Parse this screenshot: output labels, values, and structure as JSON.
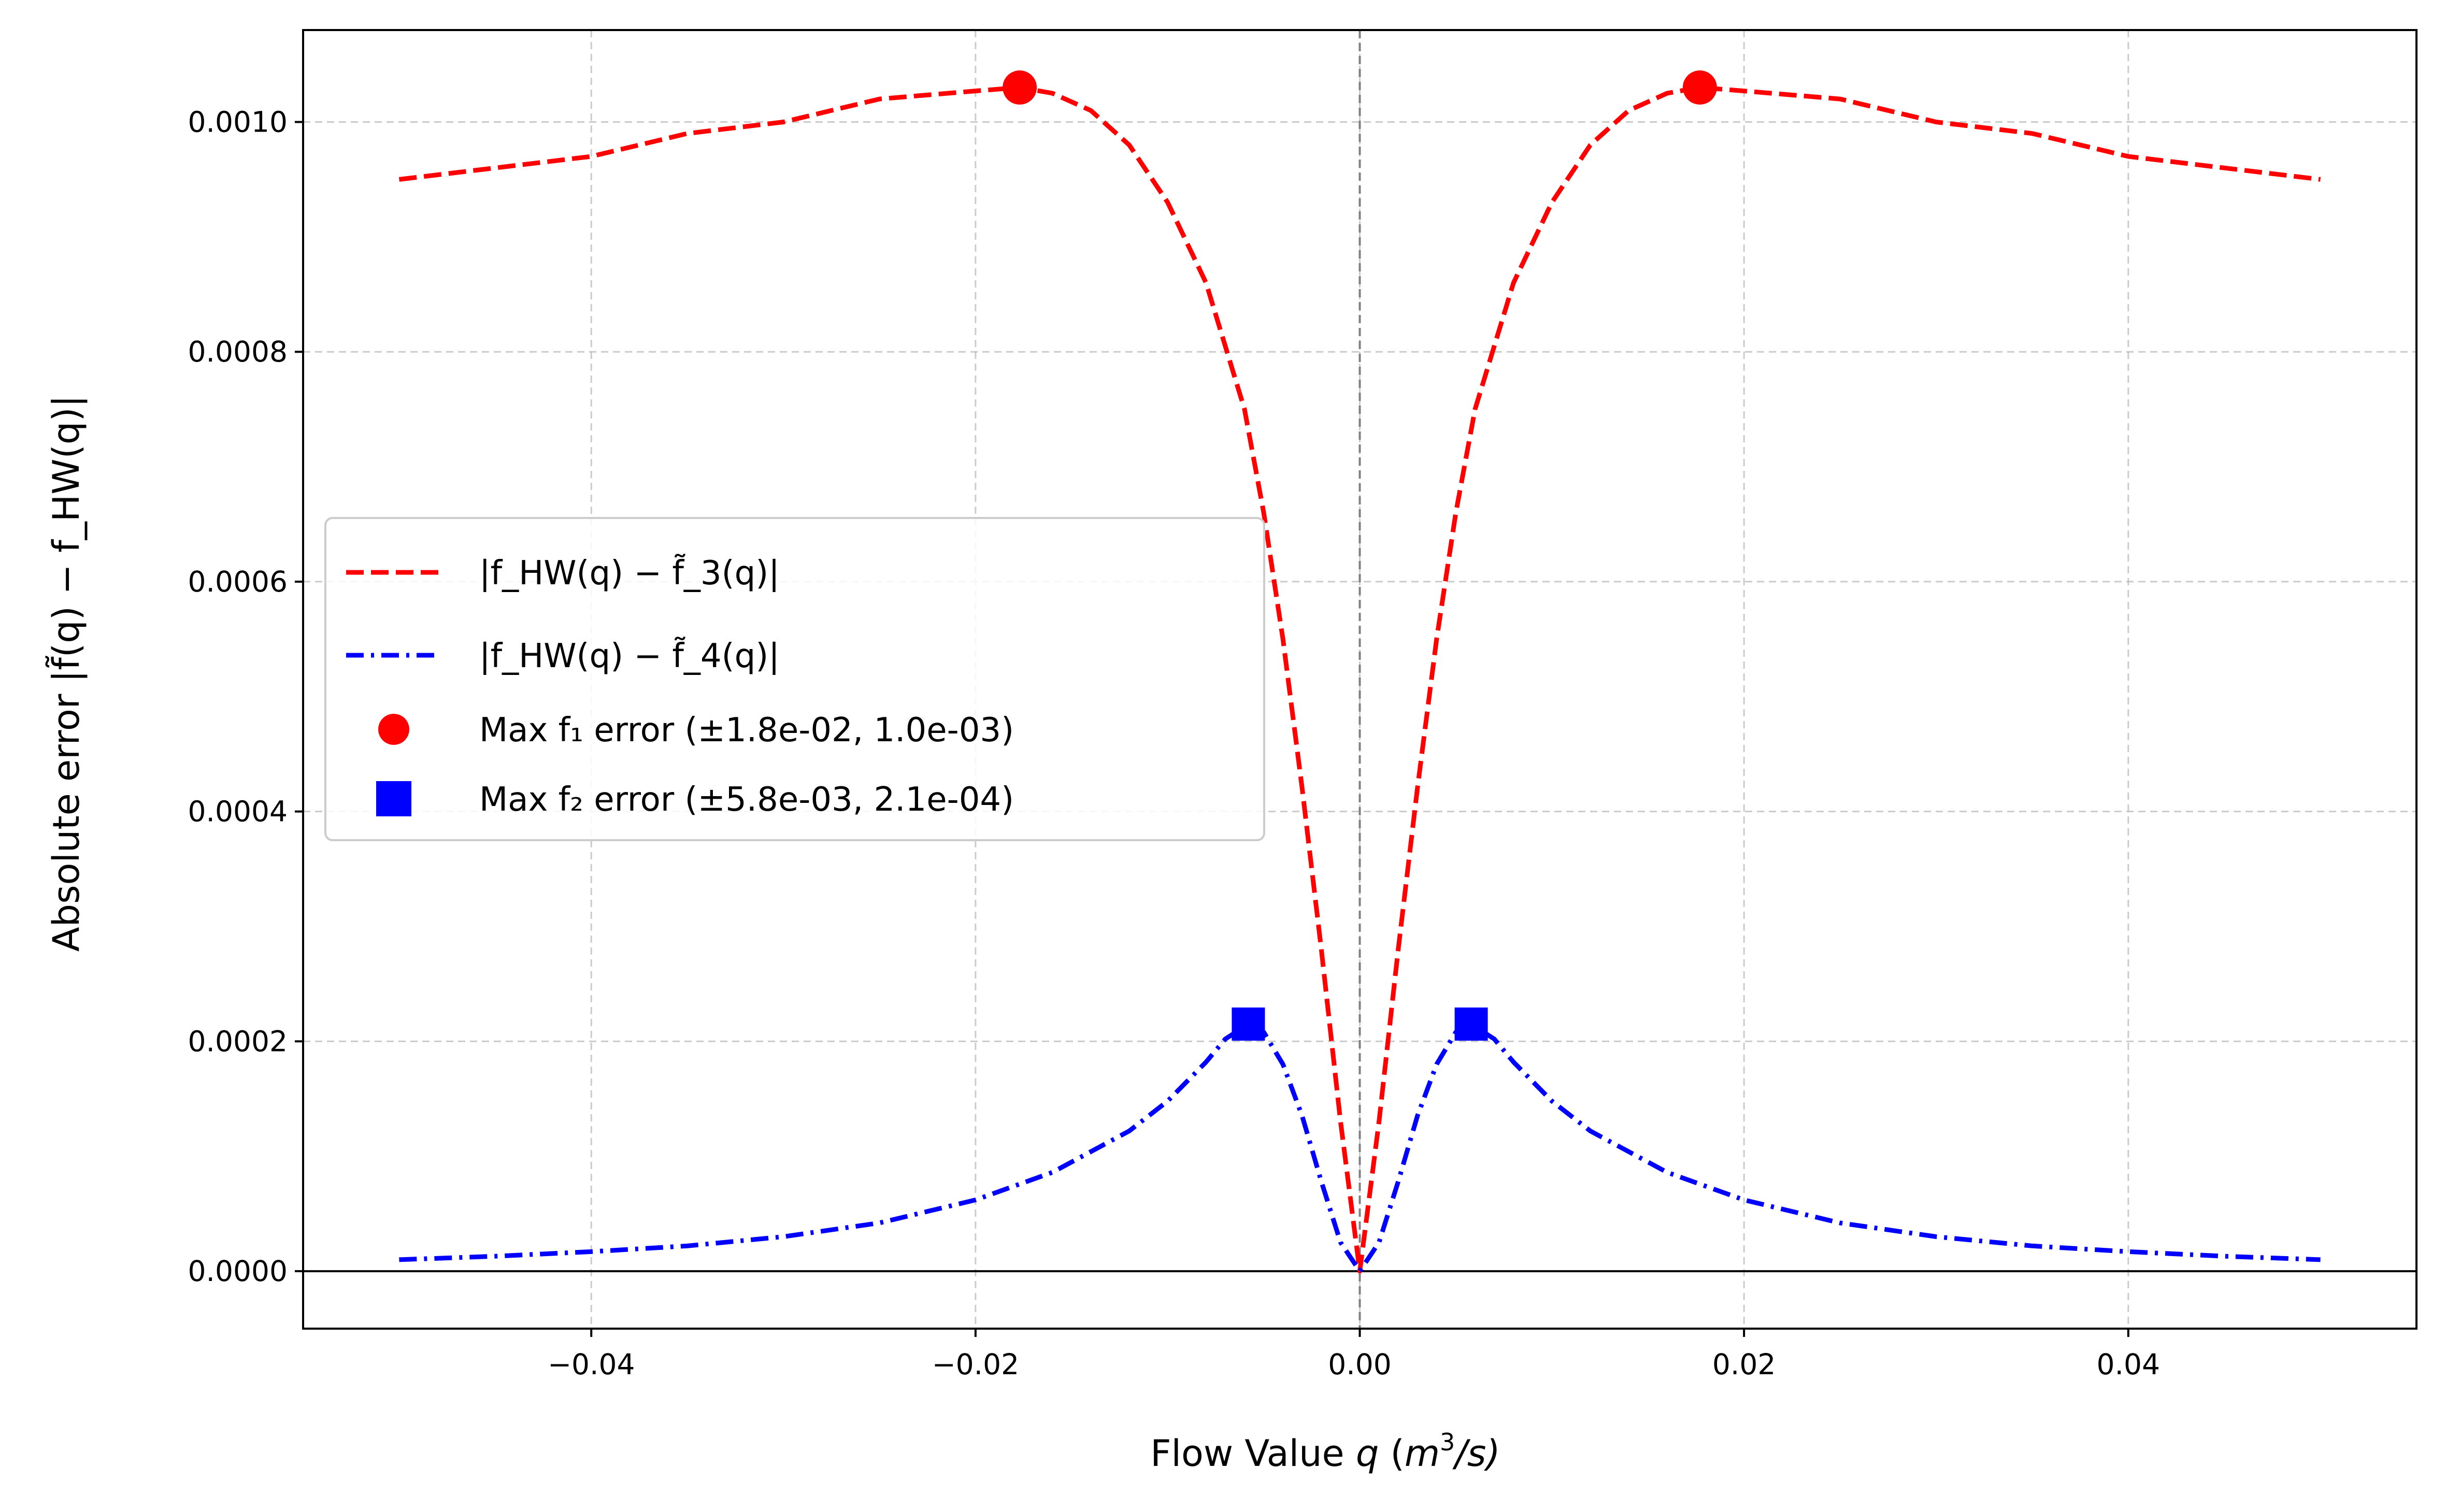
{
  "chart_data": {
    "type": "line",
    "xlabel": {
      "prefix": "Flow Value ",
      "var": "q",
      "unit_open": " (",
      "unit_m": "m",
      "unit_exp": "3",
      "unit_rest": "/s)"
    },
    "ylabel": "Absolute error |f̃(q) − f_HW(q)|",
    "xlim": [
      -0.055,
      0.055
    ],
    "ylim": [
      -5e-05,
      0.00108
    ],
    "xticks": [
      -0.04,
      -0.02,
      0.0,
      0.02,
      0.04
    ],
    "xtick_labels": [
      "−0.04",
      "−0.02",
      "0.00",
      "0.02",
      "0.04"
    ],
    "yticks": [
      0.0,
      0.0002,
      0.0004,
      0.0006,
      0.0008,
      0.001
    ],
    "ytick_labels": [
      "0.0000",
      "0.0002",
      "0.0004",
      "0.0006",
      "0.0008",
      "0.0010"
    ],
    "grid": true,
    "legend_position": "center-left",
    "reference_lines": {
      "horizontal_y": 0,
      "vertical_x": 0
    },
    "series": [
      {
        "name": "|f_HW(q) − f̃_3(q)|",
        "color": "#ff0000",
        "style": "dashed",
        "x": [
          -0.05,
          -0.045,
          -0.04,
          -0.035,
          -0.03,
          -0.025,
          -0.02,
          -0.0177,
          -0.016,
          -0.014,
          -0.012,
          -0.01,
          -0.008,
          -0.006,
          -0.005,
          -0.004,
          -0.003,
          -0.002,
          -0.001,
          0.0,
          0.001,
          0.002,
          0.003,
          0.004,
          0.005,
          0.006,
          0.008,
          0.01,
          0.012,
          0.014,
          0.016,
          0.0177,
          0.02,
          0.025,
          0.03,
          0.035,
          0.04,
          0.045,
          0.05
        ],
        "y": [
          0.00095,
          0.00096,
          0.00097,
          0.00099,
          0.001,
          0.00102,
          0.001027,
          0.00103,
          0.001025,
          0.00101,
          0.00098,
          0.00093,
          0.00086,
          0.00075,
          0.00066,
          0.00055,
          0.00042,
          0.00028,
          0.00013,
          0.0,
          0.00013,
          0.00028,
          0.00042,
          0.00055,
          0.00066,
          0.00075,
          0.00086,
          0.00093,
          0.00098,
          0.00101,
          0.001025,
          0.00103,
          0.001027,
          0.00102,
          0.001,
          0.00099,
          0.00097,
          0.00096,
          0.00095
        ]
      },
      {
        "name": "|f_HW(q) − f̃_4(q)|",
        "color": "#0000ff",
        "style": "dashdot",
        "x": [
          -0.05,
          -0.045,
          -0.04,
          -0.035,
          -0.03,
          -0.025,
          -0.02,
          -0.016,
          -0.012,
          -0.01,
          -0.008,
          -0.007,
          -0.0058,
          -0.005,
          -0.004,
          -0.003,
          -0.002,
          -0.001,
          0.0,
          0.001,
          0.002,
          0.003,
          0.004,
          0.005,
          0.0058,
          0.007,
          0.008,
          0.01,
          0.012,
          0.016,
          0.02,
          0.025,
          0.03,
          0.035,
          0.04,
          0.045,
          0.05
        ],
        "y": [
          1e-05,
          1.3e-05,
          1.7e-05,
          2.2e-05,
          3e-05,
          4.2e-05,
          6.2e-05,
          8.6e-05,
          0.000122,
          0.000148,
          0.000182,
          0.000202,
          0.000215,
          0.000208,
          0.00018,
          0.000135,
          7.8e-05,
          2.5e-05,
          0.0,
          2.5e-05,
          7.8e-05,
          0.000135,
          0.00018,
          0.000208,
          0.000215,
          0.000202,
          0.000182,
          0.000148,
          0.000122,
          8.6e-05,
          6.2e-05,
          4.2e-05,
          3e-05,
          2.2e-05,
          1.7e-05,
          1.3e-05,
          1e-05
        ]
      }
    ],
    "markers": [
      {
        "name": "Max f₁ error (±1.8e-02, 1.0e-03)",
        "shape": "circle",
        "color": "#ff0000",
        "points": [
          [
            -0.0177,
            0.00103
          ],
          [
            0.0177,
            0.00103
          ]
        ]
      },
      {
        "name": "Max f₂ error (±5.8e-03, 2.1e-04)",
        "shape": "square",
        "color": "#0000ff",
        "points": [
          [
            -0.0058,
            0.000215
          ],
          [
            0.0058,
            0.000215
          ]
        ]
      }
    ]
  }
}
